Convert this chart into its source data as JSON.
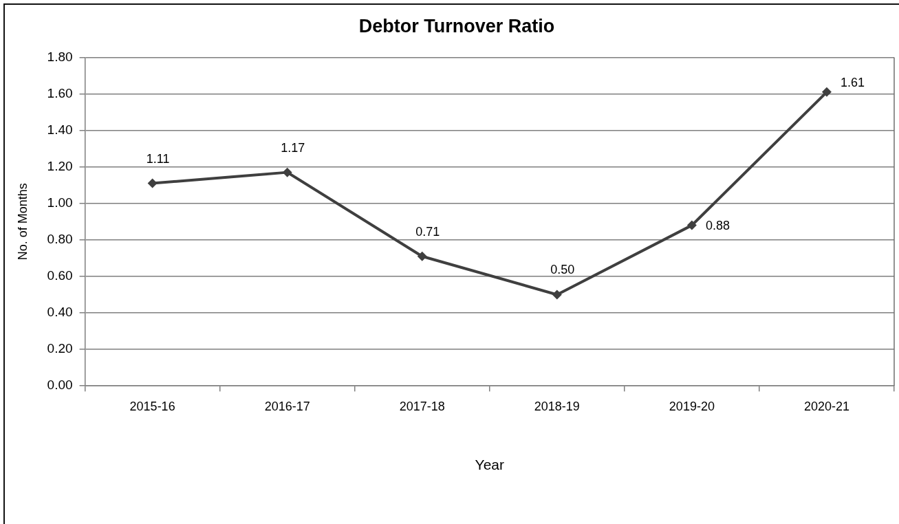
{
  "chart_data": {
    "type": "line",
    "title": "Debtor Turnover Ratio",
    "xlabel": "Year",
    "ylabel": "No. of Months",
    "categories": [
      "2015-16",
      "2016-17",
      "2017-18",
      "2018-19",
      "2019-20",
      "2020-21"
    ],
    "values": [
      1.11,
      1.17,
      0.71,
      0.5,
      0.88,
      1.61
    ],
    "value_labels": [
      "1.11",
      "1.17",
      "0.71",
      "0.50",
      "0.88",
      "1.61"
    ],
    "color": "#3f3f3f",
    "ylim": [
      0,
      1.8
    ],
    "yticks": [
      {
        "value": 0,
        "label": "0.00"
      },
      {
        "value": 0.2,
        "label": "0.20"
      },
      {
        "value": 0.4,
        "label": "0.40"
      },
      {
        "value": 0.6,
        "label": "0.60"
      },
      {
        "value": 0.8,
        "label": "0.80"
      },
      {
        "value": 1,
        "label": "1.00"
      },
      {
        "value": 1.2,
        "label": "1.20"
      },
      {
        "value": 1.4,
        "label": "1.40"
      },
      {
        "value": 1.6,
        "label": "1.60"
      },
      {
        "value": 1.8,
        "label": "1.80"
      }
    ],
    "grid": "y",
    "marker": "diamond",
    "line_style": "solid"
  }
}
